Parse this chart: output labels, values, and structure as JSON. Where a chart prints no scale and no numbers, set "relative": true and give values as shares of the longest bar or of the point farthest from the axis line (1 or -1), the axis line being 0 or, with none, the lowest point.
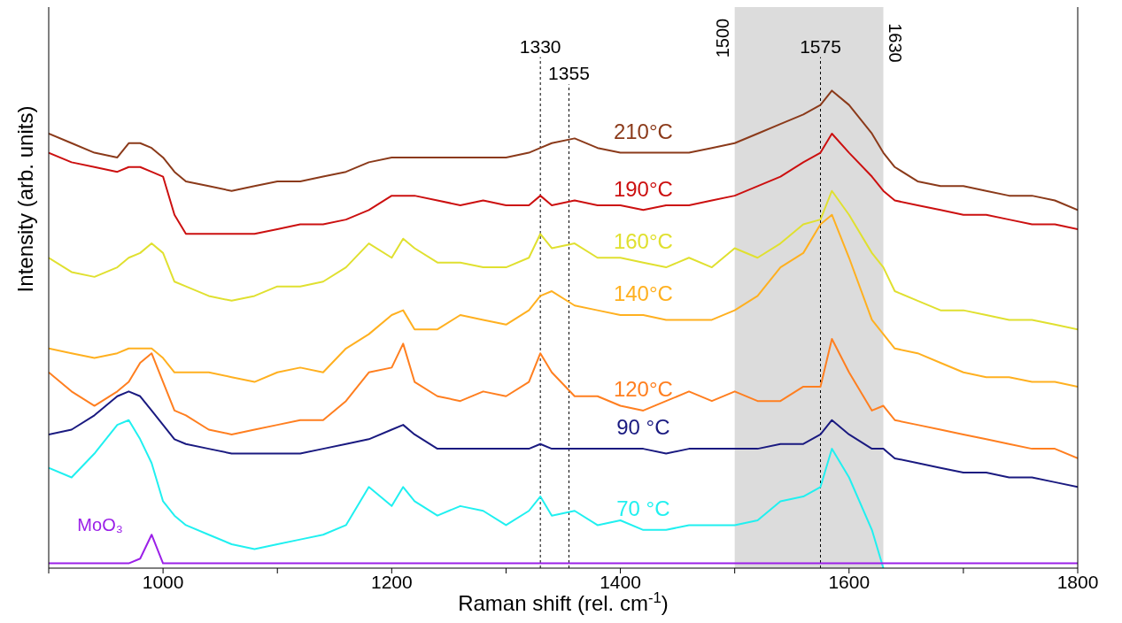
{
  "chart_data": {
    "type": "line",
    "relative": true,
    "xlabel": "Raman shift (rel. cm$^{-1}$)",
    "ylabel": "Intensity (arb. units)",
    "xlim": [
      900,
      1800
    ],
    "xticks": [
      {
        "value": 900,
        "label": null
      },
      1000,
      {
        "value": 1100,
        "label": null
      },
      1200,
      {
        "value": 1300,
        "label": null
      },
      1400,
      {
        "value": 1500,
        "label": null
      },
      1600,
      {
        "value": 1700,
        "label": null
      },
      1800
    ],
    "grid": false,
    "legend": false,
    "marker": "none",
    "line_style": "solid",
    "x": [
      900,
      920,
      940,
      960,
      970,
      980,
      990,
      1000,
      1010,
      1020,
      1040,
      1060,
      1080,
      1100,
      1120,
      1140,
      1160,
      1180,
      1200,
      1210,
      1220,
      1240,
      1260,
      1280,
      1300,
      1320,
      1330,
      1340,
      1360,
      1380,
      1400,
      1420,
      1440,
      1460,
      1480,
      1500,
      1520,
      1540,
      1560,
      1575,
      1585,
      1600,
      1620,
      1630,
      1640,
      1660,
      1680,
      1700,
      1720,
      1740,
      1760,
      1780,
      1800
    ],
    "series": [
      {
        "name": "210°C",
        "color": "#8b3a1a",
        "values": [
          0.91,
          0.89,
          0.87,
          0.86,
          0.89,
          0.89,
          0.88,
          0.86,
          0.83,
          0.81,
          0.8,
          0.79,
          0.8,
          0.81,
          0.81,
          0.82,
          0.83,
          0.85,
          0.86,
          0.86,
          0.86,
          0.86,
          0.86,
          0.86,
          0.86,
          0.87,
          0.88,
          0.89,
          0.9,
          0.88,
          0.87,
          0.87,
          0.87,
          0.87,
          0.88,
          0.89,
          0.91,
          0.93,
          0.95,
          0.97,
          1,
          0.97,
          0.91,
          0.87,
          0.84,
          0.81,
          0.8,
          0.8,
          0.79,
          0.78,
          0.78,
          0.77,
          0.75
        ]
      },
      {
        "name": "190°C",
        "color": "#cc1010",
        "values": [
          0.87,
          0.85,
          0.84,
          0.83,
          0.84,
          0.84,
          0.83,
          0.82,
          0.74,
          0.7,
          0.7,
          0.7,
          0.7,
          0.71,
          0.72,
          0.72,
          0.73,
          0.75,
          0.78,
          0.78,
          0.78,
          0.77,
          0.76,
          0.77,
          0.76,
          0.76,
          0.78,
          0.76,
          0.77,
          0.76,
          0.76,
          0.75,
          0.76,
          0.76,
          0.77,
          0.78,
          0.8,
          0.82,
          0.85,
          0.87,
          0.91,
          0.87,
          0.82,
          0.79,
          0.77,
          0.76,
          0.75,
          0.74,
          0.74,
          0.73,
          0.72,
          0.72,
          0.71
        ]
      },
      {
        "name": "160°C",
        "color": "#e0e030",
        "values": [
          0.65,
          0.62,
          0.61,
          0.63,
          0.65,
          0.66,
          0.68,
          0.66,
          0.6,
          0.59,
          0.57,
          0.56,
          0.57,
          0.59,
          0.59,
          0.6,
          0.63,
          0.68,
          0.65,
          0.69,
          0.67,
          0.64,
          0.64,
          0.63,
          0.63,
          0.65,
          0.7,
          0.67,
          0.68,
          0.65,
          0.65,
          0.64,
          0.63,
          0.65,
          0.63,
          0.67,
          0.65,
          0.68,
          0.72,
          0.73,
          0.79,
          0.74,
          0.66,
          0.63,
          0.58,
          0.56,
          0.54,
          0.54,
          0.53,
          0.52,
          0.52,
          0.51,
          0.5
        ]
      },
      {
        "name": "140°C",
        "color": "#ffb020",
        "values": [
          0.46,
          0.45,
          0.44,
          0.45,
          0.46,
          0.46,
          0.46,
          0.44,
          0.41,
          0.41,
          0.41,
          0.4,
          0.39,
          0.41,
          0.42,
          0.41,
          0.46,
          0.49,
          0.53,
          0.54,
          0.5,
          0.5,
          0.53,
          0.52,
          0.51,
          0.54,
          0.57,
          0.58,
          0.55,
          0.54,
          0.53,
          0.53,
          0.52,
          0.52,
          0.52,
          0.54,
          0.57,
          0.63,
          0.66,
          0.72,
          0.74,
          0.65,
          0.52,
          0.49,
          0.46,
          0.45,
          0.43,
          0.41,
          0.4,
          0.4,
          0.39,
          0.39,
          0.38
        ]
      },
      {
        "name": "120°C",
        "color": "#ff7f20",
        "values": [
          0.41,
          0.37,
          0.34,
          0.37,
          0.39,
          0.43,
          0.45,
          0.39,
          0.33,
          0.32,
          0.29,
          0.28,
          0.29,
          0.3,
          0.31,
          0.31,
          0.35,
          0.41,
          0.42,
          0.47,
          0.39,
          0.36,
          0.35,
          0.37,
          0.36,
          0.39,
          0.45,
          0.41,
          0.36,
          0.36,
          0.34,
          0.33,
          0.35,
          0.37,
          0.35,
          0.37,
          0.35,
          0.35,
          0.38,
          0.38,
          0.48,
          0.41,
          0.33,
          0.34,
          0.31,
          0.3,
          0.29,
          0.28,
          0.27,
          0.26,
          0.25,
          0.25,
          0.23
        ]
      },
      {
        "name": "90 °C",
        "color": "#1a1a80",
        "values": [
          0.28,
          0.29,
          0.32,
          0.36,
          0.37,
          0.36,
          0.33,
          0.3,
          0.27,
          0.26,
          0.25,
          0.24,
          0.24,
          0.24,
          0.24,
          0.25,
          0.26,
          0.27,
          0.29,
          0.3,
          0.28,
          0.25,
          0.25,
          0.25,
          0.25,
          0.25,
          0.26,
          0.25,
          0.25,
          0.25,
          0.25,
          0.25,
          0.24,
          0.25,
          0.25,
          0.25,
          0.25,
          0.26,
          0.26,
          0.28,
          0.31,
          0.28,
          0.25,
          0.25,
          0.23,
          0.22,
          0.21,
          0.2,
          0.2,
          0.19,
          0.19,
          0.18,
          0.17
        ]
      },
      {
        "name": "70 °C",
        "color": "#20f0f0",
        "values": [
          0.21,
          0.19,
          0.24,
          0.3,
          0.31,
          0.27,
          0.22,
          0.14,
          0.11,
          0.09,
          0.07,
          0.05,
          0.04,
          0.05,
          0.06,
          0.07,
          0.09,
          0.17,
          0.13,
          0.17,
          0.14,
          0.11,
          0.13,
          0.12,
          0.09,
          0.12,
          0.15,
          0.11,
          0.12,
          0.09,
          0.1,
          0.08,
          0.08,
          0.09,
          0.09,
          0.09,
          0.1,
          0.14,
          0.15,
          0.17,
          0.25,
          0.19,
          0.08,
          0,
          null,
          null,
          null,
          null,
          null,
          null,
          null,
          null,
          null
        ]
      },
      {
        "name": "MoO₃",
        "color": "#9b20e8",
        "values": [
          0.01,
          0.01,
          0.01,
          0.01,
          0.01,
          0.02,
          0.07,
          0.01,
          0.01,
          0.01,
          0.01,
          0.01,
          0.01,
          0.01,
          0.01,
          0.01,
          0.01,
          0.01,
          0.01,
          0.01,
          0.01,
          0.01,
          0.01,
          0.01,
          0.01,
          0.01,
          0.01,
          0.01,
          0.01,
          0.01,
          0.01,
          0.01,
          0.01,
          0.01,
          0.01,
          0.01,
          0.01,
          0.01,
          0.01,
          0.01,
          0.01,
          0.01,
          0.01,
          0.01,
          0.01,
          0.01,
          0.01,
          0.01,
          0.01,
          0.01,
          0.01,
          0.01,
          0.01
        ]
      }
    ],
    "bands": [
      {
        "axis": "x",
        "from": 1500,
        "to": 1630,
        "color": "#dcdcdc"
      }
    ],
    "ref_lines": [
      {
        "axis": "x",
        "value": 1330,
        "label": "1330",
        "line_style": "dashed"
      },
      {
        "axis": "x",
        "value": 1355,
        "label": "1355",
        "line_style": "dashed"
      },
      {
        "axis": "x",
        "value": 1575,
        "label": "1575",
        "line_style": "dashed"
      }
    ],
    "annotations": [
      {
        "text": "1500",
        "x": 1500,
        "y": 1.11
      },
      {
        "text": "1630",
        "x": 1630,
        "y": 1.1
      }
    ]
  }
}
